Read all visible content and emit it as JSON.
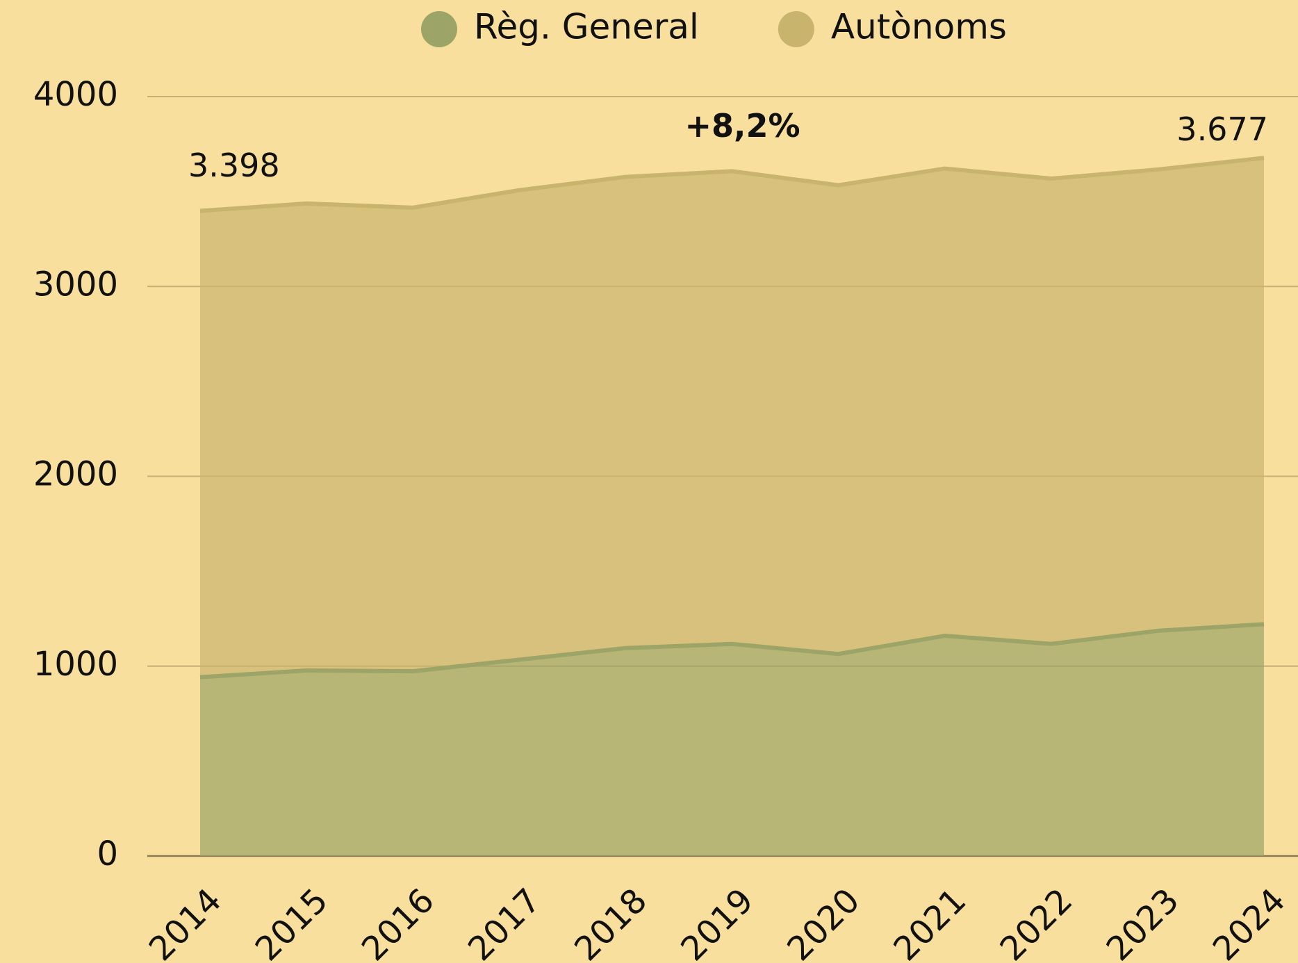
{
  "chart_data": {
    "type": "stacked_area",
    "categories": [
      "2014",
      "2015",
      "2016",
      "2017",
      "2018",
      "2019",
      "2020",
      "2021",
      "2022",
      "2023",
      "2024"
    ],
    "series": [
      {
        "name": "Règ. General",
        "color": "#9ca467",
        "values": [
          942,
          977,
          973,
          1034,
          1095,
          1117,
          1064,
          1160,
          1117,
          1186,
          1221
        ]
      },
      {
        "name": "Autònoms",
        "color": "#c9b46e",
        "values": [
          2456,
          2460,
          2442,
          2473,
          2482,
          2490,
          2469,
          2461,
          2451,
          2430,
          2456
        ]
      }
    ],
    "ylim": [
      0,
      4000
    ],
    "yticks": [
      0,
      1000,
      2000,
      3000,
      4000
    ],
    "grid": true,
    "legend": "top",
    "annotations": [
      {
        "text": "3.398",
        "x": "2014",
        "value": 3398
      },
      {
        "text": "+8,2%",
        "x": "2019"
      },
      {
        "text": "3.677",
        "x": "2024",
        "value": 3677
      }
    ]
  }
}
